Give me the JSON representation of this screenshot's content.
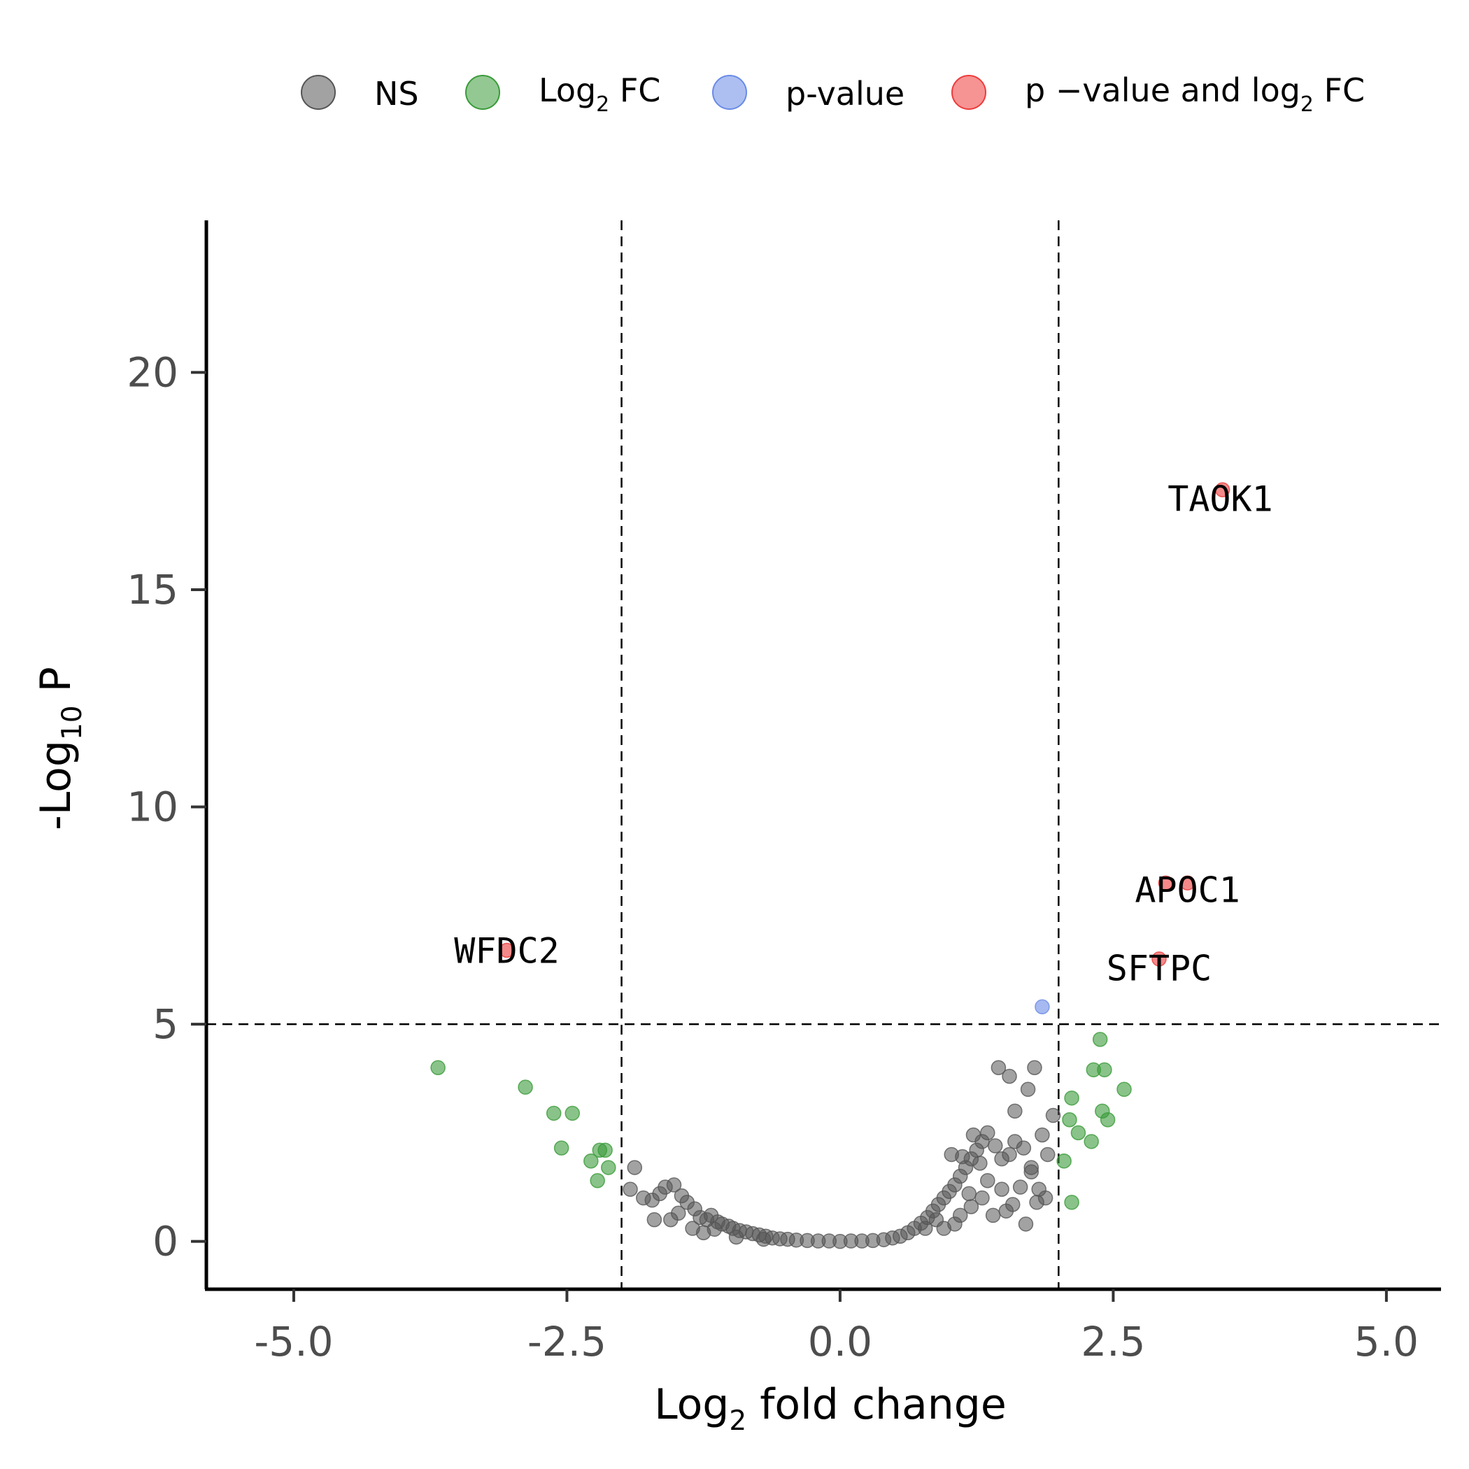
{
  "chart_data": {
    "type": "scatter",
    "xlabel": {
      "base": "Log",
      "sub": "2",
      "rest": " fold change"
    },
    "ylabel": {
      "base": "-Log",
      "sub": "10",
      "rest": " P"
    },
    "xlim": [
      -5.8,
      5.5
    ],
    "ylim": [
      -1.1,
      23.5
    ],
    "x_ticks": [
      -5.0,
      -2.5,
      0.0,
      2.5,
      5.0
    ],
    "x_tick_labels": [
      "-5.0",
      "-2.5",
      "0.0",
      "2.5",
      "5.0"
    ],
    "y_ticks": [
      0,
      5,
      10,
      15,
      20
    ],
    "y_tick_labels": [
      "0",
      "5",
      "10",
      "15",
      "20"
    ],
    "cutoffs": {
      "log2fc": [
        -2,
        2
      ],
      "neg_log10_p": 5
    },
    "grid": false,
    "legend_position": "top",
    "series": [
      {
        "name": "NS",
        "color": "#555555",
        "points": [
          [
            -1.88,
            1.7
          ],
          [
            -1.92,
            1.2
          ],
          [
            -1.8,
            1.0
          ],
          [
            -1.72,
            0.95
          ],
          [
            -1.65,
            1.1
          ],
          [
            -1.6,
            1.25
          ],
          [
            -1.52,
            1.3
          ],
          [
            -1.45,
            1.05
          ],
          [
            -1.4,
            0.9
          ],
          [
            -1.33,
            0.75
          ],
          [
            -1.28,
            0.55
          ],
          [
            -1.22,
            0.5
          ],
          [
            -1.18,
            0.6
          ],
          [
            -1.12,
            0.45
          ],
          [
            -1.08,
            0.4
          ],
          [
            -1.02,
            0.35
          ],
          [
            -0.98,
            0.3
          ],
          [
            -0.92,
            0.25
          ],
          [
            -0.86,
            0.22
          ],
          [
            -0.8,
            0.18
          ],
          [
            -0.74,
            0.15
          ],
          [
            -0.68,
            0.12
          ],
          [
            -0.62,
            0.08
          ],
          [
            -0.55,
            0.06
          ],
          [
            -0.48,
            0.05
          ],
          [
            -0.4,
            0.03
          ],
          [
            -0.3,
            0.02
          ],
          [
            -0.2,
            0.01
          ],
          [
            -0.1,
            0.01
          ],
          [
            0.0,
            0.0
          ],
          [
            0.1,
            0.01
          ],
          [
            0.2,
            0.01
          ],
          [
            -1.55,
            0.5
          ],
          [
            -1.35,
            0.3
          ],
          [
            -1.25,
            0.2
          ],
          [
            -1.15,
            0.28
          ],
          [
            -0.95,
            0.1
          ],
          [
            -0.7,
            0.05
          ],
          [
            -1.7,
            0.5
          ],
          [
            -1.48,
            0.65
          ],
          [
            0.3,
            0.02
          ],
          [
            0.4,
            0.04
          ],
          [
            0.48,
            0.08
          ],
          [
            0.55,
            0.12
          ],
          [
            0.62,
            0.2
          ],
          [
            0.68,
            0.3
          ],
          [
            0.74,
            0.42
          ],
          [
            0.8,
            0.55
          ],
          [
            0.85,
            0.7
          ],
          [
            0.9,
            0.85
          ],
          [
            0.95,
            1.0
          ],
          [
            1.0,
            1.15
          ],
          [
            1.05,
            1.3
          ],
          [
            1.1,
            1.5
          ],
          [
            1.15,
            1.7
          ],
          [
            1.2,
            1.9
          ],
          [
            1.25,
            2.1
          ],
          [
            1.3,
            2.3
          ],
          [
            1.35,
            2.5
          ],
          [
            1.22,
            2.45
          ],
          [
            1.42,
            2.2
          ],
          [
            1.48,
            1.9
          ],
          [
            1.55,
            2.0
          ],
          [
            1.6,
            2.3
          ],
          [
            1.68,
            2.15
          ],
          [
            1.75,
            1.6
          ],
          [
            1.82,
            1.2
          ],
          [
            1.88,
            1.0
          ],
          [
            1.65,
            1.25
          ],
          [
            1.58,
            0.85
          ],
          [
            1.52,
            0.7
          ],
          [
            1.7,
            0.4
          ],
          [
            1.6,
            3.0
          ],
          [
            1.72,
            3.5
          ],
          [
            1.78,
            4.0
          ],
          [
            1.45,
            4.0
          ],
          [
            1.55,
            3.8
          ],
          [
            1.9,
            2.0
          ],
          [
            1.95,
            2.9
          ],
          [
            1.85,
            2.45
          ],
          [
            1.1,
            0.6
          ],
          [
            1.2,
            0.8
          ],
          [
            1.3,
            1.0
          ],
          [
            1.05,
            0.4
          ],
          [
            0.95,
            0.3
          ],
          [
            1.4,
            0.6
          ],
          [
            1.35,
            1.4
          ],
          [
            1.28,
            1.8
          ],
          [
            1.48,
            1.2
          ],
          [
            1.18,
            1.1
          ],
          [
            1.02,
            2.0
          ],
          [
            1.12,
            1.95
          ],
          [
            0.88,
            0.5
          ],
          [
            0.78,
            0.3
          ],
          [
            1.75,
            1.7
          ],
          [
            1.8,
            0.9
          ]
        ]
      },
      {
        "name": "Log₂ FC",
        "color": "#3a9b3a",
        "points": [
          [
            -3.68,
            4.0
          ],
          [
            -2.88,
            3.55
          ],
          [
            -2.62,
            2.95
          ],
          [
            -2.45,
            2.95
          ],
          [
            -2.55,
            2.15
          ],
          [
            -2.2,
            2.1
          ],
          [
            -2.15,
            2.1
          ],
          [
            -2.28,
            1.85
          ],
          [
            -2.12,
            1.7
          ],
          [
            -2.22,
            1.4
          ],
          [
            2.38,
            4.65
          ],
          [
            2.32,
            3.95
          ],
          [
            2.42,
            3.95
          ],
          [
            2.6,
            3.5
          ],
          [
            2.12,
            3.3
          ],
          [
            2.4,
            3.0
          ],
          [
            2.1,
            2.8
          ],
          [
            2.45,
            2.8
          ],
          [
            2.18,
            2.5
          ],
          [
            2.3,
            2.3
          ],
          [
            2.05,
            1.85
          ],
          [
            2.12,
            0.9
          ]
        ]
      },
      {
        "name": "p-value",
        "color": "#6a8be6",
        "points": [
          [
            1.85,
            5.4
          ]
        ]
      },
      {
        "name": "p −value and log₂ FC",
        "color": "#ee3b3b",
        "points": [
          [
            3.5,
            17.3
          ],
          [
            3.18,
            8.25
          ],
          [
            2.98,
            8.25
          ],
          [
            2.92,
            6.5
          ],
          [
            -3.05,
            6.7
          ]
        ]
      }
    ],
    "annotations": [
      {
        "text": "TAOK1",
        "x": 3.48,
        "y": 17.1
      },
      {
        "text": "APOC1",
        "x": 3.18,
        "y": 8.1
      },
      {
        "text": "SFTPC",
        "x": 2.92,
        "y": 6.3
      },
      {
        "text": "WFDC2",
        "x": -3.05,
        "y": 6.7
      }
    ]
  },
  "legend": [
    {
      "label": "NS",
      "color": "#555555"
    },
    {
      "label_base": "Log",
      "label_sub": "2",
      "label_rest": " FC",
      "color": "#3a9b3a"
    },
    {
      "label": "p-value",
      "color": "#6a8be6"
    },
    {
      "label_base": "p −value and log",
      "label_sub": "2",
      "label_rest": " FC",
      "color": "#ee3b3b"
    }
  ]
}
